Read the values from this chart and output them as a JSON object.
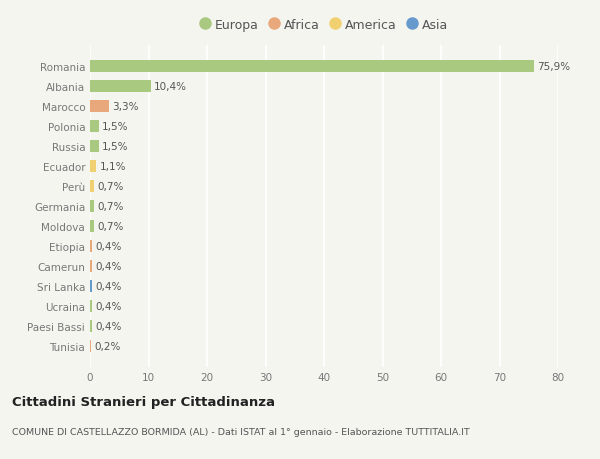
{
  "categories": [
    "Romania",
    "Albania",
    "Marocco",
    "Polonia",
    "Russia",
    "Ecuador",
    "Perù",
    "Germania",
    "Moldova",
    "Etiopia",
    "Camerun",
    "Sri Lanka",
    "Ucraina",
    "Paesi Bassi",
    "Tunisia"
  ],
  "values": [
    75.9,
    10.4,
    3.3,
    1.5,
    1.5,
    1.1,
    0.7,
    0.7,
    0.7,
    0.4,
    0.4,
    0.4,
    0.4,
    0.4,
    0.2
  ],
  "labels": [
    "75,9%",
    "10,4%",
    "3,3%",
    "1,5%",
    "1,5%",
    "1,1%",
    "0,7%",
    "0,7%",
    "0,7%",
    "0,4%",
    "0,4%",
    "0,4%",
    "0,4%",
    "0,4%",
    "0,2%"
  ],
  "continent": [
    "Europa",
    "Europa",
    "Africa",
    "Europa",
    "Europa",
    "America",
    "America",
    "Europa",
    "Europa",
    "Africa",
    "Africa",
    "Asia",
    "Europa",
    "Europa",
    "Africa"
  ],
  "colors": {
    "Europa": "#a8c97f",
    "Africa": "#e8a87c",
    "America": "#f0d070",
    "Asia": "#6699cc"
  },
  "legend_items": [
    "Europa",
    "Africa",
    "America",
    "Asia"
  ],
  "legend_colors": [
    "#a8c97f",
    "#e8a87c",
    "#f0d070",
    "#6699cc"
  ],
  "xlim": [
    0,
    80
  ],
  "xticks": [
    0,
    10,
    20,
    30,
    40,
    50,
    60,
    70,
    80
  ],
  "title": "Cittadini Stranieri per Cittadinanza",
  "subtitle": "COMUNE DI CASTELLAZZO BORMIDA (AL) - Dati ISTAT al 1° gennaio - Elaborazione TUTTITALIA.IT",
  "bg_color": "#f5f5f0",
  "bar_height": 0.6,
  "label_fontsize": 7.5,
  "tick_fontsize": 7.5,
  "legend_fontsize": 9.0
}
